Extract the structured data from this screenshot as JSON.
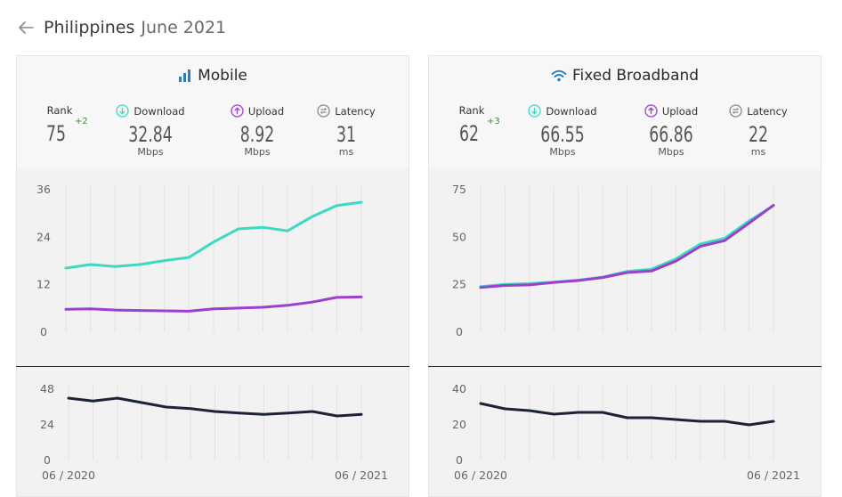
{
  "header": {
    "country": "Philippines",
    "date": "June 2021"
  },
  "colors": {
    "download": "#3dd9c1",
    "upload": "#9c3fcf",
    "latency": "#1c2238",
    "rank_change": "#3b8a3b",
    "grid": "#e2e2e2",
    "icon_blue": "#2a7fc1"
  },
  "icons": {
    "back": "arrow-left-icon",
    "mobile": "signal-bars-icon",
    "fixed": "wifi-icon",
    "download": "download-circle-icon",
    "upload": "upload-circle-icon",
    "latency": "latency-circle-icon"
  },
  "cards": [
    {
      "id": "mobile",
      "title": "Mobile",
      "metrics": {
        "rank": {
          "label": "Rank",
          "value": "75",
          "change": "+2"
        },
        "download": {
          "label": "Download",
          "value": "32.84",
          "unit": "Mbps"
        },
        "upload": {
          "label": "Upload",
          "value": "8.92",
          "unit": "Mbps"
        },
        "latency": {
          "label": "Latency",
          "value": "31",
          "unit": "ms"
        }
      }
    },
    {
      "id": "fixed",
      "title": "Fixed Broadband",
      "metrics": {
        "rank": {
          "label": "Rank",
          "value": "62",
          "change": "+3"
        },
        "download": {
          "label": "Download",
          "value": "66.55",
          "unit": "Mbps"
        },
        "upload": {
          "label": "Upload",
          "value": "66.86",
          "unit": "Mbps"
        },
        "latency": {
          "label": "Latency",
          "value": "22",
          "unit": "ms"
        }
      }
    }
  ],
  "chart_data": [
    {
      "type": "line",
      "panel": "mobile-speed",
      "x": [
        "06 / 2020",
        "07 / 2020",
        "08 / 2020",
        "09 / 2020",
        "10 / 2020",
        "11 / 2020",
        "12 / 2020",
        "01 / 2021",
        "02 / 2021",
        "03 / 2021",
        "04 / 2021",
        "05 / 2021",
        "06 / 2021"
      ],
      "ylim": [
        0,
        36
      ],
      "yticks": [
        "0",
        "12",
        "24",
        "36"
      ],
      "series": [
        {
          "key": "download",
          "values": [
            16.2,
            17.1,
            16.6,
            17.1,
            18.1,
            18.9,
            22.8,
            26.1,
            26.5,
            25.6,
            29.2,
            32.0,
            32.84
          ]
        },
        {
          "key": "upload",
          "values": [
            5.8,
            5.9,
            5.6,
            5.5,
            5.4,
            5.3,
            5.9,
            6.1,
            6.3,
            6.8,
            7.6,
            8.8,
            8.92
          ]
        }
      ]
    },
    {
      "type": "line",
      "panel": "mobile-latency",
      "x": [
        "06 / 2020",
        "07 / 2020",
        "08 / 2020",
        "09 / 2020",
        "10 / 2020",
        "11 / 2020",
        "12 / 2020",
        "01 / 2021",
        "02 / 2021",
        "03 / 2021",
        "04 / 2021",
        "05 / 2021",
        "06 / 2021"
      ],
      "ylim": [
        0,
        48
      ],
      "yticks": [
        "0",
        "24",
        "48"
      ],
      "xtick_labels": [
        "06 / 2020",
        "06 / 2021"
      ],
      "series": [
        {
          "key": "latency",
          "values": [
            42,
            40,
            42,
            39,
            36,
            35,
            33,
            32,
            31,
            32,
            33,
            30,
            31
          ]
        }
      ]
    },
    {
      "type": "line",
      "panel": "fixed-speed",
      "x": [
        "06 / 2020",
        "07 / 2020",
        "08 / 2020",
        "09 / 2020",
        "10 / 2020",
        "11 / 2020",
        "12 / 2020",
        "01 / 2021",
        "02 / 2021",
        "03 / 2021",
        "04 / 2021",
        "05 / 2021",
        "06 / 2021"
      ],
      "ylim": [
        0,
        75
      ],
      "yticks": [
        "0",
        "25",
        "50",
        "75"
      ],
      "series": [
        {
          "key": "download",
          "values": [
            24.0,
            25.2,
            25.6,
            26.4,
            27.4,
            29.0,
            32.0,
            33.2,
            38.6,
            46.4,
            49.4,
            58.6,
            66.55
          ]
        },
        {
          "key": "upload",
          "values": [
            23.6,
            24.6,
            24.9,
            26.2,
            27.2,
            28.8,
            31.4,
            32.2,
            37.4,
            45.2,
            48.2,
            57.4,
            66.86
          ]
        }
      ]
    },
    {
      "type": "line",
      "panel": "fixed-latency",
      "x": [
        "06 / 2020",
        "07 / 2020",
        "08 / 2020",
        "09 / 2020",
        "10 / 2020",
        "11 / 2020",
        "12 / 2020",
        "01 / 2021",
        "02 / 2021",
        "03 / 2021",
        "04 / 2021",
        "05 / 2021",
        "06 / 2021"
      ],
      "ylim": [
        0,
        40
      ],
      "yticks": [
        "0",
        "20",
        "40"
      ],
      "xtick_labels": [
        "06 / 2020",
        "06 / 2021"
      ],
      "series": [
        {
          "key": "latency",
          "values": [
            32,
            29,
            28,
            26,
            27,
            27,
            24,
            24,
            23,
            22,
            22,
            20,
            22
          ]
        }
      ]
    }
  ]
}
